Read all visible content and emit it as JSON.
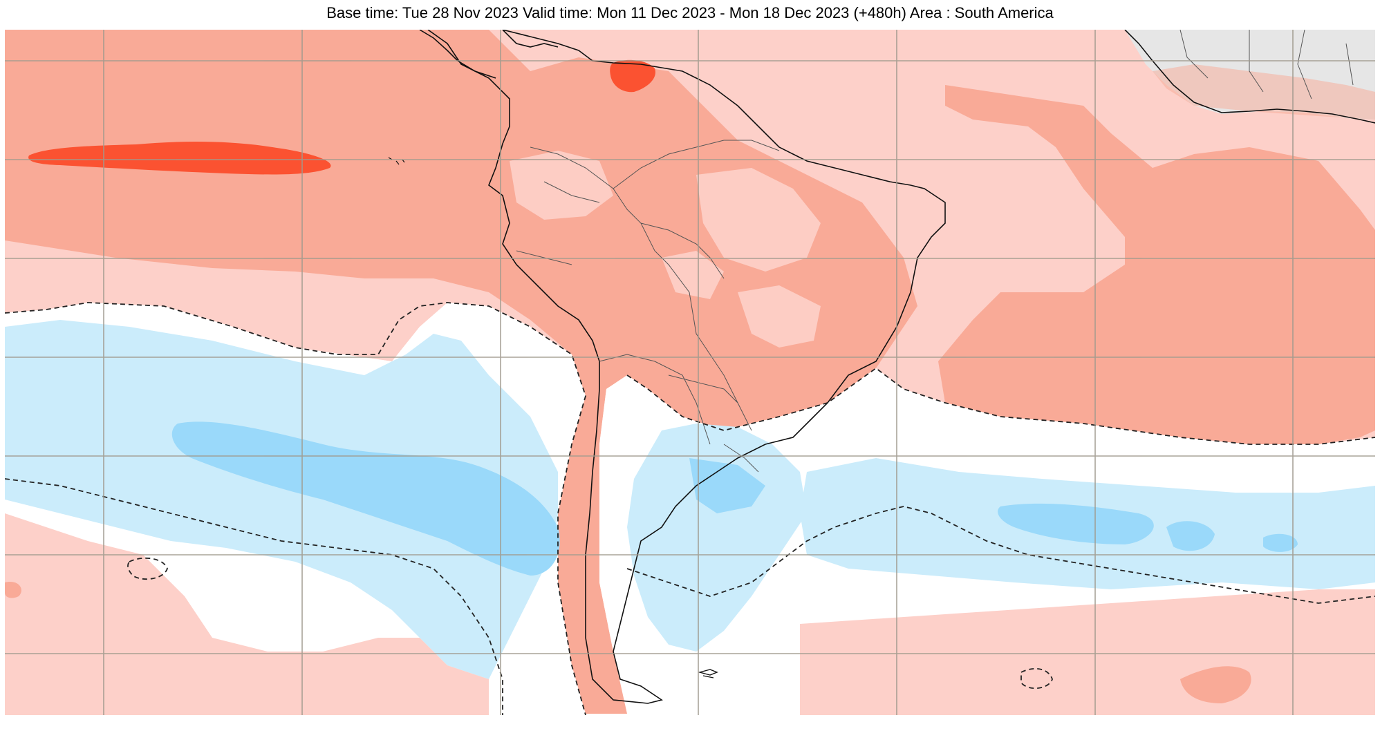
{
  "header": {
    "title": "Base time: Tue 28 Nov 2023 Valid time: Mon 11 Dec 2023 - Mon 18 Dec 2023 (+480h) Area : South America"
  },
  "map": {
    "area": "South America",
    "colors": {
      "light_red": "#fdd0c9",
      "mid_red": "#f9aa97",
      "strong_red": "#fb5231",
      "light_blue": "#cbecfb",
      "mid_blue": "#9ad9fa",
      "gray_land": "#e6e6e6",
      "land_tint": "#f7a995",
      "grid": "#a09a8e",
      "coast": "#111111"
    }
  }
}
